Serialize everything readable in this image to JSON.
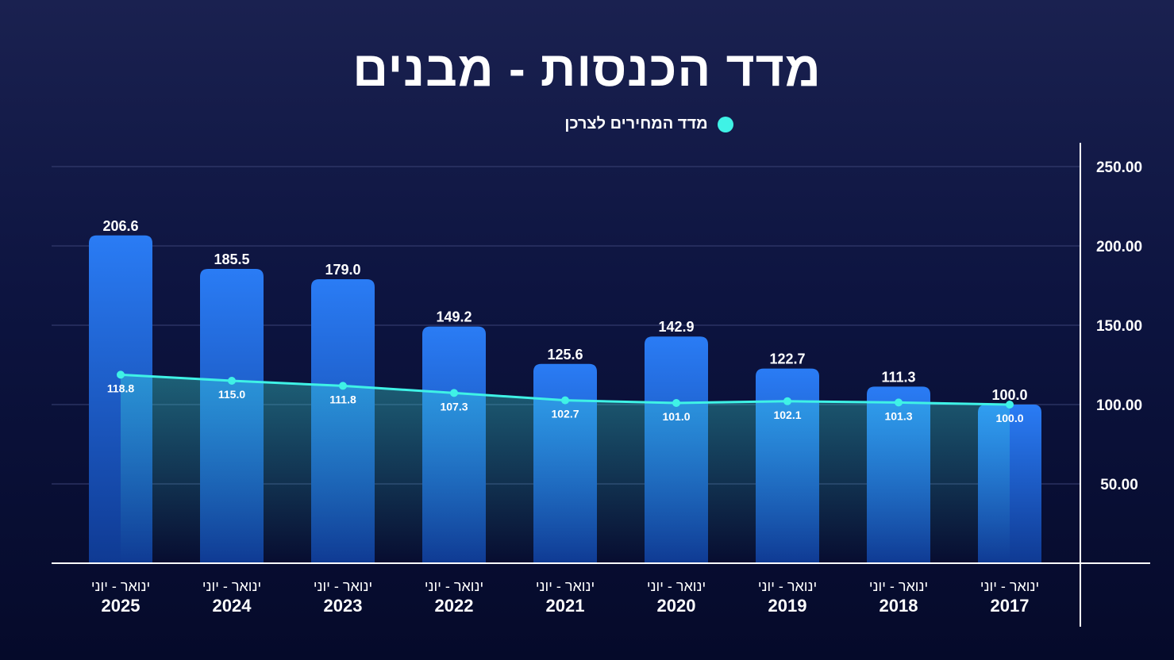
{
  "chart_data": {
    "type": "bar",
    "title": "מדד הכנסות - מבנים",
    "categories": [
      {
        "top": "ינואר - יוני",
        "bottom": "2025"
      },
      {
        "top": "ינואר - יוני",
        "bottom": "2024"
      },
      {
        "top": "ינואר - יוני",
        "bottom": "2023"
      },
      {
        "top": "ינואר - יוני",
        "bottom": "2022"
      },
      {
        "top": "ינואר - יוני",
        "bottom": "2021"
      },
      {
        "top": "ינואר - יוני",
        "bottom": "2020"
      },
      {
        "top": "ינואר - יוני",
        "bottom": "2019"
      },
      {
        "top": "ינואר - יוני",
        "bottom": "2018"
      },
      {
        "top": "ינואר - יוני",
        "bottom": "2017"
      }
    ],
    "series": [
      {
        "type": "bar",
        "values": [
          206.6,
          185.5,
          179.0,
          149.2,
          125.6,
          142.9,
          122.7,
          111.3,
          100.0
        ],
        "color": "#2a7cf5"
      },
      {
        "type": "line",
        "name": "מדד המחירים לצרכן",
        "values": [
          118.8,
          115.0,
          111.8,
          107.3,
          102.7,
          101.0,
          102.1,
          101.3,
          100.0
        ],
        "color": "#3ff2e6"
      }
    ],
    "y_axis": {
      "side": "right",
      "ylim": [
        0,
        250
      ],
      "ticks": [
        "50.00",
        "100.00",
        "150.00",
        "200.00",
        "250.00"
      ],
      "tick_values": [
        50,
        100,
        150,
        200,
        250
      ]
    },
    "grid": true,
    "legend": "top-center"
  }
}
